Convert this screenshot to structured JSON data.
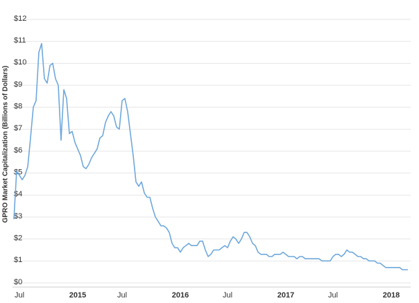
{
  "chart_data": {
    "type": "line",
    "ylabel": "GPRO Market Capitalization (Billions of Dollars)",
    "categories": [
      null,
      null,
      "Jul",
      null,
      null,
      null,
      null,
      null,
      null,
      null,
      null,
      null,
      null,
      null,
      null,
      null,
      null,
      null,
      null,
      null,
      null,
      null,
      null,
      "2015",
      null,
      null,
      null,
      null,
      null,
      null,
      null,
      null,
      null,
      null,
      null,
      null,
      null,
      null,
      null,
      "Jul",
      null,
      null,
      null,
      null,
      null,
      null,
      null,
      null,
      null,
      null,
      null,
      null,
      null,
      null,
      null,
      null,
      null,
      null,
      null,
      null,
      "2016",
      null,
      null,
      null,
      null,
      null,
      null,
      null,
      null,
      null,
      null,
      null,
      null,
      null,
      null,
      null,
      null,
      "Jul",
      null,
      null,
      null,
      null,
      null,
      null,
      null,
      null,
      null,
      null,
      null,
      null,
      null,
      null,
      null,
      null,
      null,
      null,
      null,
      null,
      "2017",
      null,
      null,
      null,
      null,
      null,
      null,
      null,
      null,
      null,
      null,
      null,
      null,
      null,
      null,
      null,
      null,
      "Jul",
      null,
      null,
      null,
      null,
      null,
      null,
      null,
      null,
      null,
      null,
      null,
      null,
      null,
      null,
      null,
      null,
      null,
      null,
      null,
      null,
      "2018",
      null,
      null,
      null,
      null,
      null,
      null
    ],
    "series": [
      {
        "color": "#6fa8dc",
        "values": [
          2.9,
          5.1,
          4.9,
          4.7,
          4.9,
          5.3,
          6.6,
          8.0,
          8.3,
          10.5,
          10.9,
          9.3,
          9.1,
          9.9,
          10.0,
          9.3,
          9.0,
          6.5,
          8.8,
          8.4,
          6.8,
          6.9,
          6.4,
          6.1,
          5.8,
          5.3,
          5.2,
          5.4,
          5.7,
          5.9,
          6.1,
          6.6,
          6.7,
          7.3,
          7.6,
          7.8,
          7.6,
          7.1,
          7.0,
          8.3,
          8.4,
          7.8,
          6.8,
          5.8,
          4.6,
          4.4,
          4.6,
          4.1,
          3.9,
          3.9,
          3.4,
          3.0,
          2.8,
          2.6,
          2.6,
          2.5,
          2.3,
          1.8,
          1.6,
          1.6,
          1.4,
          1.6,
          1.7,
          1.8,
          1.7,
          1.7,
          1.7,
          1.9,
          1.9,
          1.5,
          1.2,
          1.3,
          1.5,
          1.5,
          1.5,
          1.6,
          1.7,
          1.6,
          1.9,
          2.1,
          2.0,
          1.8,
          2.0,
          2.3,
          2.3,
          2.1,
          1.8,
          1.7,
          1.4,
          1.3,
          1.3,
          1.3,
          1.2,
          1.2,
          1.3,
          1.3,
          1.3,
          1.4,
          1.3,
          1.2,
          1.2,
          1.2,
          1.1,
          1.2,
          1.2,
          1.1,
          1.1,
          1.1,
          1.1,
          1.1,
          1.1,
          1.0,
          1.0,
          1.0,
          1.0,
          1.2,
          1.3,
          1.3,
          1.2,
          1.3,
          1.5,
          1.4,
          1.4,
          1.3,
          1.2,
          1.2,
          1.1,
          1.1,
          1.0,
          1.0,
          1.0,
          0.9,
          0.9,
          0.8,
          0.7,
          0.7,
          0.7,
          0.7,
          0.7,
          0.7,
          0.6,
          0.6,
          0.6
        ]
      }
    ],
    "ylim": [
      0,
      12
    ],
    "yticks": [
      {
        "value": 0,
        "label": "$0"
      },
      {
        "value": 1,
        "label": "$1"
      },
      {
        "value": 2,
        "label": "$2"
      },
      {
        "value": 3,
        "label": "$3"
      },
      {
        "value": 4,
        "label": "$4"
      },
      {
        "value": 5,
        "label": "$5"
      },
      {
        "value": 6,
        "label": "$6"
      },
      {
        "value": 7,
        "label": "$7"
      },
      {
        "value": 8,
        "label": "$8"
      },
      {
        "value": 9,
        "label": "$9"
      },
      {
        "value": 10,
        "label": "$10"
      },
      {
        "value": 11,
        "label": "$11"
      },
      {
        "value": 12,
        "label": "$12"
      }
    ],
    "grid": true
  }
}
